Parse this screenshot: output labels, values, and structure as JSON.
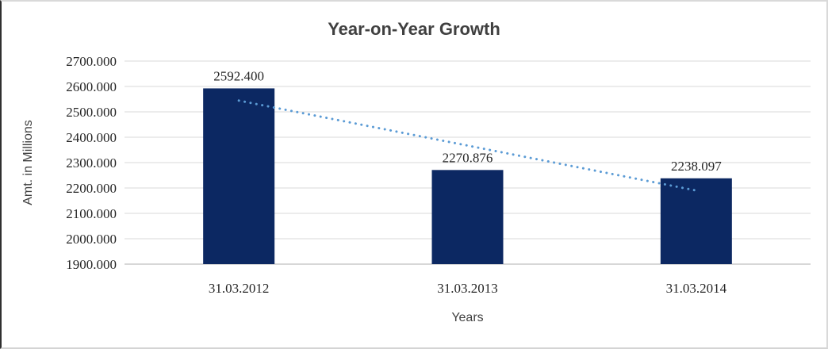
{
  "chart_data": {
    "type": "bar",
    "title": "Year-on-Year Growth",
    "xlabel": "Years",
    "ylabel": "Amt. in Millions",
    "categories": [
      "31.03.2012",
      "31.03.2013",
      "31.03.2014"
    ],
    "values": [
      2592.4,
      2270.876,
      2238.097
    ],
    "data_labels": [
      "2592.400",
      "2270.876",
      "2238.097"
    ],
    "ylim": [
      1900,
      2700
    ],
    "ytick_step": 100,
    "ytick_labels": [
      "1900.000",
      "2000.000",
      "2100.000",
      "2200.000",
      "2300.000",
      "2400.000",
      "2500.000",
      "2600.000",
      "2700.000"
    ],
    "grid": "horizontal",
    "legend_position": "none",
    "bar_color": "#0c2862",
    "gridline_color": "#d9d9d9",
    "axisline_color": "#bfbfbf",
    "label_color": "#262626",
    "title_color": "#404040",
    "trendline": {
      "type": "linear",
      "style": "dotted",
      "color": "#5b9bd5",
      "start_value": 2544.3,
      "end_value": 2190.0
    }
  }
}
